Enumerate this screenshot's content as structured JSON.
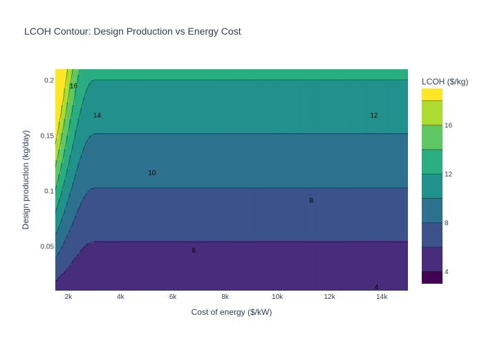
{
  "chart_data": {
    "type": "contour",
    "title": "LCOH Contour: Design Production vs Energy Cost",
    "xlabel": "Cost of energy ($/kW)",
    "ylabel": "Design production (kg/day)",
    "colorbar_title": "LCOH ($/kg)",
    "xlim": [
      1500,
      15000
    ],
    "ylim": [
      0.01,
      0.21
    ],
    "x_ticks": [
      {
        "value": 2000,
        "label": "2k"
      },
      {
        "value": 4000,
        "label": "4k"
      },
      {
        "value": 6000,
        "label": "6k"
      },
      {
        "value": 8000,
        "label": "8k"
      },
      {
        "value": 10000,
        "label": "10k"
      },
      {
        "value": 12000,
        "label": "12k"
      },
      {
        "value": 14000,
        "label": "14k"
      }
    ],
    "y_ticks": [
      {
        "value": 0.05,
        "label": "0.05"
      },
      {
        "value": 0.1,
        "label": "0.1"
      },
      {
        "value": 0.15,
        "label": "0.15"
      },
      {
        "value": 0.2,
        "label": "0.2"
      }
    ],
    "levels": [
      4,
      6,
      8,
      10,
      12,
      14,
      16,
      18
    ],
    "zlim": [
      3,
      19
    ],
    "colorbar_ticks": [
      {
        "value": 4,
        "label": "4"
      },
      {
        "value": 8,
        "label": "8"
      },
      {
        "value": 12,
        "label": "12"
      },
      {
        "value": 16,
        "label": "16"
      }
    ],
    "colorscale": [
      "#440154",
      "#482878",
      "#3e4989",
      "#31688e",
      "#26828e",
      "#1f9e89",
      "#35b779",
      "#6ece58",
      "#b5de2b",
      "#fde725"
    ],
    "contour_labels": [
      {
        "x": 13800,
        "y": 0.0135,
        "text": "4"
      },
      {
        "x": 6800,
        "y": 0.0465,
        "text": "6"
      },
      {
        "x": 11300,
        "y": 0.0915,
        "text": "8"
      },
      {
        "x": 5200,
        "y": 0.1165,
        "text": "10"
      },
      {
        "x": 13700,
        "y": 0.1685,
        "text": "12"
      },
      {
        "x": 3100,
        "y": 0.1685,
        "text": "14"
      },
      {
        "x": 2200,
        "y": 0.195,
        "text": "16"
      }
    ]
  }
}
